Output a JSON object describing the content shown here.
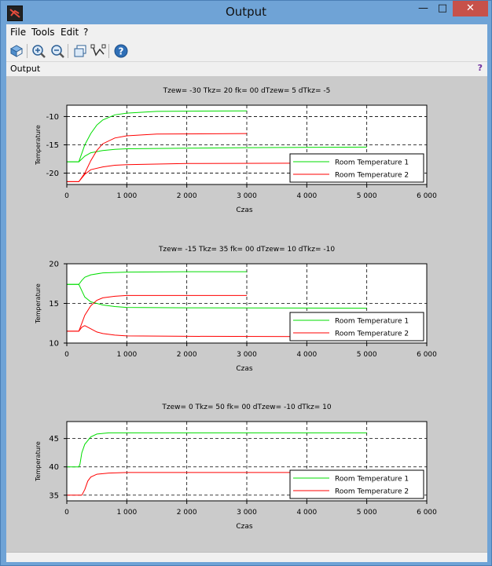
{
  "window": {
    "title": "Output"
  },
  "window_buttons": {
    "minimize": "—",
    "maximize": "□",
    "close": "✕"
  },
  "menu": [
    "File",
    "Tools",
    "Edit",
    "?"
  ],
  "toolbar": {
    "icons": [
      "rotate-icon",
      "zoom-in-icon",
      "zoom-out-icon",
      "new-figure-icon",
      "data-tip-icon",
      "help-icon"
    ]
  },
  "panel": {
    "label": "Output",
    "help": "?"
  },
  "colors": {
    "series1": "#00dd00",
    "series2": "#ff0000",
    "plot_bg": "#ffffff",
    "figure_bg": "#cbcbcb"
  },
  "chart_data": [
    {
      "type": "line",
      "title": "Tzew=   -30   Tkz=   20   fk=   00   dTzew=   5   dTkz=   -5",
      "xlabel": "Czas",
      "ylabel": "Temperature",
      "xlim": [
        0,
        6000
      ],
      "ylim": [
        -22,
        -8
      ],
      "xticks": [
        0,
        1000,
        2000,
        3000,
        4000,
        5000,
        6000
      ],
      "xtick_labels": [
        "0",
        "1 000",
        "2 000",
        "3 000",
        "4 000",
        "5 000",
        "6 000"
      ],
      "yticks": [
        -20,
        -15,
        -10
      ],
      "ytick_labels": [
        "-20",
        "-15",
        "-10"
      ],
      "grid": "dashed",
      "legend_position": "bottom-right",
      "legend": [
        "Room Temperature 1",
        "Room Temperature 2"
      ],
      "series": [
        {
          "name": "Room Temperature 1",
          "color": "#00dd00",
          "points": [
            [
              0,
              -18
            ],
            [
              200,
              -18
            ],
            [
              250,
              -16.5
            ],
            [
              300,
              -15
            ],
            [
              400,
              -13
            ],
            [
              500,
              -11.5
            ],
            [
              600,
              -10.6
            ],
            [
              800,
              -9.7
            ],
            [
              1000,
              -9.4
            ],
            [
              1500,
              -9.1
            ],
            [
              2000,
              -9.05
            ],
            [
              3000,
              -9.0
            ]
          ]
        },
        {
          "name": "Room Temperature 1",
          "color": "#00dd00",
          "points": [
            [
              0,
              -18
            ],
            [
              200,
              -18
            ],
            [
              300,
              -17
            ],
            [
              400,
              -16.4
            ],
            [
              600,
              -16
            ],
            [
              800,
              -15.8
            ],
            [
              1000,
              -15.7
            ],
            [
              2000,
              -15.6
            ],
            [
              3000,
              -15.5
            ],
            [
              5000,
              -15.4
            ]
          ]
        },
        {
          "name": "Room Temperature 2",
          "color": "#ff0000",
          "points": [
            [
              0,
              -21.5
            ],
            [
              200,
              -21.5
            ],
            [
              300,
              -20
            ],
            [
              400,
              -17.8
            ],
            [
              500,
              -16
            ],
            [
              600,
              -14.8
            ],
            [
              800,
              -13.8
            ],
            [
              1000,
              -13.4
            ],
            [
              1500,
              -13.1
            ],
            [
              3000,
              -13.0
            ]
          ]
        },
        {
          "name": "Room Temperature 2",
          "color": "#ff0000",
          "points": [
            [
              0,
              -21.5
            ],
            [
              200,
              -21.5
            ],
            [
              300,
              -20.2
            ],
            [
              400,
              -19.4
            ],
            [
              600,
              -18.9
            ],
            [
              800,
              -18.6
            ],
            [
              1000,
              -18.5
            ],
            [
              2000,
              -18.3
            ],
            [
              5000,
              -18.2
            ]
          ]
        }
      ]
    },
    {
      "type": "line",
      "title": "Tzew=   -15   Tkz=   35   fk=   00   dTzew=   10   dTkz=   -10",
      "xlabel": "Czas",
      "ylabel": "Temperature",
      "xlim": [
        0,
        6000
      ],
      "ylim": [
        10,
        20
      ],
      "xticks": [
        0,
        1000,
        2000,
        3000,
        4000,
        5000,
        6000
      ],
      "xtick_labels": [
        "0",
        "1 000",
        "2 000",
        "3 000",
        "4 000",
        "5 000",
        "6 000"
      ],
      "yticks": [
        10,
        15,
        20
      ],
      "ytick_labels": [
        "10",
        "15",
        "20"
      ],
      "grid": "dashed",
      "legend_position": "bottom-right",
      "legend": [
        "Room Temperature 1",
        "Room Temperature 2"
      ],
      "series": [
        {
          "name": "Room Temperature 1",
          "color": "#00dd00",
          "points": [
            [
              0,
              17.4
            ],
            [
              200,
              17.4
            ],
            [
              250,
              17.9
            ],
            [
              300,
              18.3
            ],
            [
              400,
              18.6
            ],
            [
              600,
              18.85
            ],
            [
              1000,
              18.95
            ],
            [
              2000,
              19.0
            ],
            [
              3000,
              19.0
            ]
          ]
        },
        {
          "name": "Room Temperature 1",
          "color": "#00dd00",
          "points": [
            [
              0,
              17.4
            ],
            [
              200,
              17.4
            ],
            [
              250,
              16.6
            ],
            [
              300,
              15.8
            ],
            [
              400,
              15.2
            ],
            [
              600,
              14.8
            ],
            [
              800,
              14.6
            ],
            [
              1000,
              14.5
            ],
            [
              2000,
              14.45
            ],
            [
              5000,
              14.4
            ]
          ]
        },
        {
          "name": "Room Temperature 2",
          "color": "#ff0000",
          "points": [
            [
              0,
              11.5
            ],
            [
              200,
              11.5
            ],
            [
              250,
              12.5
            ],
            [
              300,
              13.5
            ],
            [
              400,
              14.7
            ],
            [
              500,
              15.4
            ],
            [
              600,
              15.7
            ],
            [
              800,
              15.9
            ],
            [
              1000,
              16.0
            ],
            [
              3000,
              16.0
            ]
          ]
        },
        {
          "name": "Room Temperature 2",
          "color": "#ff0000",
          "points": [
            [
              0,
              11.5
            ],
            [
              200,
              11.5
            ],
            [
              250,
              12.0
            ],
            [
              300,
              12.2
            ],
            [
              400,
              11.8
            ],
            [
              500,
              11.4
            ],
            [
              600,
              11.2
            ],
            [
              800,
              11.0
            ],
            [
              1000,
              10.9
            ],
            [
              2000,
              10.85
            ],
            [
              5000,
              10.8
            ]
          ]
        }
      ]
    },
    {
      "type": "line",
      "title": "Tzew=   0   Tkz=   50   fk=   00   dTzew=   -10   dTkz=   10",
      "xlabel": "Czas",
      "ylabel": "Temperature",
      "xlim": [
        0,
        6000
      ],
      "ylim": [
        34,
        48
      ],
      "xticks": [
        0,
        1000,
        2000,
        3000,
        4000,
        5000,
        6000
      ],
      "xtick_labels": [
        "0",
        "1 000",
        "2 000",
        "3 000",
        "4 000",
        "5 000",
        "6 000"
      ],
      "yticks": [
        35,
        40,
        45
      ],
      "ytick_labels": [
        "35",
        "40",
        "45"
      ],
      "grid": "dashed",
      "legend_position": "bottom-right",
      "legend": [
        "Room Temperature 1",
        "Room Temperature 2"
      ],
      "series": [
        {
          "name": "Room Temperature 1",
          "color": "#00dd00",
          "points": [
            [
              0,
              40
            ],
            [
              200,
              40
            ],
            [
              220,
              40.5
            ],
            [
              250,
              42.5
            ],
            [
              300,
              44
            ],
            [
              400,
              45.3
            ],
            [
              500,
              45.8
            ],
            [
              700,
              46
            ],
            [
              1000,
              46
            ],
            [
              5000,
              46
            ]
          ]
        },
        {
          "name": "Room Temperature 2",
          "color": "#ff0000",
          "points": [
            [
              0,
              35
            ],
            [
              250,
              35
            ],
            [
              300,
              36
            ],
            [
              350,
              37.5
            ],
            [
              400,
              38.2
            ],
            [
              500,
              38.7
            ],
            [
              700,
              38.9
            ],
            [
              1000,
              39
            ],
            [
              5000,
              39
            ]
          ]
        }
      ]
    }
  ]
}
